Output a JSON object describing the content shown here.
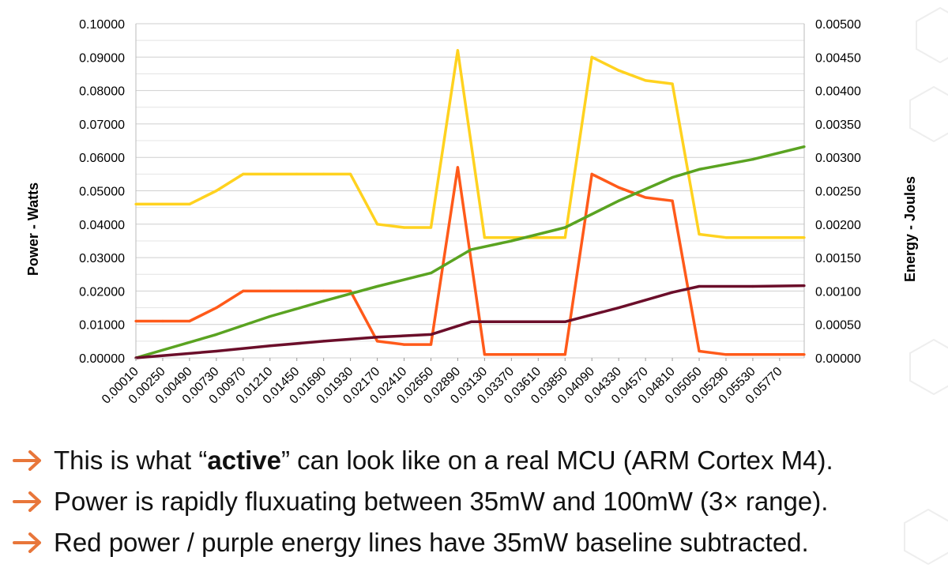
{
  "chart_data": {
    "type": "line",
    "ylabel": "Power - Watts",
    "y2label": "Energy - Joules",
    "ylim": [
      0,
      0.1
    ],
    "y2lim": [
      0,
      0.005
    ],
    "yticks": [
      "0.10000",
      "0.09000",
      "0.08000",
      "0.07000",
      "0.06000",
      "0.05000",
      "0.04000",
      "0.03000",
      "0.02000",
      "0.01000",
      "0.00000"
    ],
    "y2ticks": [
      "0.00500",
      "0.00450",
      "0.00400",
      "0.00350",
      "0.00300",
      "0.00250",
      "0.00200",
      "0.00150",
      "0.00100",
      "0.00050",
      "0.00000"
    ],
    "xticks": [
      "0.00010",
      "0.00250",
      "0.00490",
      "0.00730",
      "0.00970",
      "0.01210",
      "0.01450",
      "0.01690",
      "0.01930",
      "0.02170",
      "0.02410",
      "0.02650",
      "0.02890",
      "0.03130",
      "0.03370",
      "0.03610",
      "0.03850",
      "0.04090",
      "0.04330",
      "0.04570",
      "0.04810",
      "0.05050",
      "0.05290",
      "0.05530",
      "0.05770"
    ],
    "grid": true,
    "series": [
      {
        "color": "#ffd21f",
        "axis": "left",
        "x": [
          0.0001,
          0.0025,
          0.0049,
          0.0073,
          0.0097,
          0.0121,
          0.0145,
          0.0169,
          0.0193,
          0.0217,
          0.0241,
          0.0265,
          0.0289,
          0.0313,
          0.0337,
          0.0361,
          0.0385,
          0.0409,
          0.0433,
          0.0457,
          0.0481,
          0.0505,
          0.0529,
          0.0553,
          0.0577,
          0.0599
        ],
        "values": [
          0.046,
          0.046,
          0.046,
          0.05,
          0.055,
          0.055,
          0.055,
          0.055,
          0.055,
          0.04,
          0.039,
          0.039,
          0.092,
          0.036,
          0.036,
          0.036,
          0.036,
          0.09,
          0.086,
          0.083,
          0.082,
          0.037,
          0.036,
          0.036,
          0.036,
          0.036
        ]
      },
      {
        "color": "#ff5a1a",
        "axis": "left",
        "x": [
          0.0001,
          0.0025,
          0.0049,
          0.0073,
          0.0097,
          0.0121,
          0.0145,
          0.0169,
          0.0193,
          0.0217,
          0.0241,
          0.0265,
          0.0289,
          0.0313,
          0.0337,
          0.0361,
          0.0385,
          0.0409,
          0.0433,
          0.0457,
          0.0481,
          0.0505,
          0.0529,
          0.0553,
          0.0577,
          0.0599
        ],
        "values": [
          0.011,
          0.011,
          0.011,
          0.015,
          0.02,
          0.02,
          0.02,
          0.02,
          0.02,
          0.005,
          0.004,
          0.004,
          0.057,
          0.001,
          0.001,
          0.001,
          0.001,
          0.055,
          0.051,
          0.048,
          0.047,
          0.002,
          0.001,
          0.001,
          0.001,
          0.001
        ]
      },
      {
        "color": "#5aa321",
        "axis": "right",
        "x": [
          0.0001,
          0.0073,
          0.0121,
          0.0169,
          0.0217,
          0.0265,
          0.0301,
          0.0337,
          0.0385,
          0.0433,
          0.0481,
          0.0505,
          0.0553,
          0.0599
        ],
        "values": [
          0.0,
          0.00035,
          0.00062,
          0.00085,
          0.00107,
          0.00127,
          0.00162,
          0.00175,
          0.00195,
          0.00235,
          0.0027,
          0.00282,
          0.00297,
          0.00316
        ]
      },
      {
        "color": "#6b0e2a",
        "axis": "right",
        "x": [
          0.0001,
          0.0073,
          0.0121,
          0.0169,
          0.0217,
          0.0265,
          0.0301,
          0.0337,
          0.0385,
          0.0433,
          0.0481,
          0.0505,
          0.0553,
          0.0599
        ],
        "values": [
          0.0,
          0.0001,
          0.00018,
          0.00025,
          0.00031,
          0.00035,
          0.00054,
          0.00054,
          0.00054,
          0.00075,
          0.00098,
          0.00107,
          0.00107,
          0.00108
        ]
      }
    ]
  },
  "bullets": {
    "b1_pre": "This is what “",
    "b1_bold": "active",
    "b1_post": "” can look like on a real MCU (ARM Cortex M4).",
    "b2": "Power is rapidly fluxuating between 35mW and 100mW (3× range).",
    "b3": "Red power / purple energy lines have 35mW baseline subtracted."
  },
  "colors": {
    "arrow": "#e8763a"
  }
}
